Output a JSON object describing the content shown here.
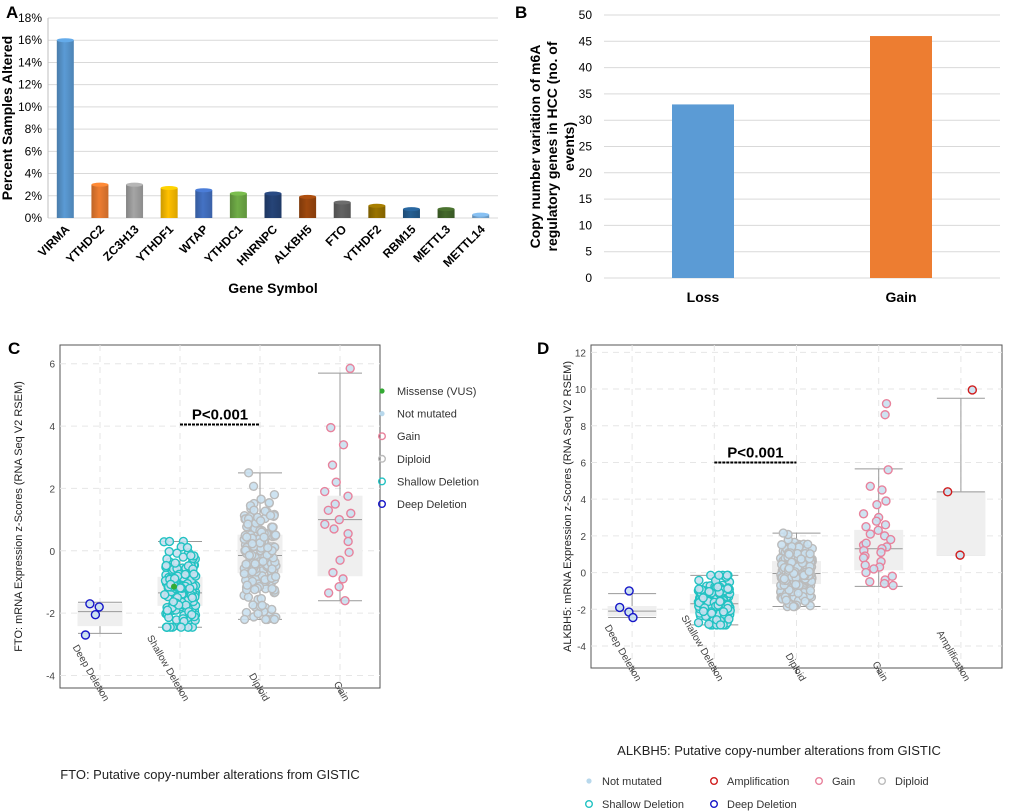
{
  "chart_data": [
    {
      "panel": "A",
      "type": "bar",
      "title": "",
      "xlabel": "Gene Symbol",
      "ylabel": "Percent Samples Altered",
      "categories": [
        "VIRMA",
        "YTHDC2",
        "ZC3H13",
        "YTHDF1",
        "WTAP",
        "YTHDC1",
        "HNRNPC",
        "ALKBH5",
        "FTO",
        "YTHDF2",
        "RBM15",
        "METTL3",
        "METTL14"
      ],
      "values": [
        16,
        3,
        3,
        2.7,
        2.5,
        2.2,
        2.2,
        1.9,
        1.4,
        1.1,
        0.8,
        0.8,
        0.3
      ],
      "colors": [
        "#5b9bd5",
        "#ed7d31",
        "#a5a5a5",
        "#ffc000",
        "#4472c4",
        "#70ad47",
        "#264478",
        "#9e480e",
        "#636363",
        "#997300",
        "#255e91",
        "#43682b",
        "#7cafdd"
      ],
      "ylim": [
        0,
        18
      ],
      "yticks": [
        0,
        2,
        4,
        6,
        8,
        10,
        12,
        14,
        16,
        18
      ],
      "ytick_labels": [
        "0%",
        "2%",
        "4%",
        "6%",
        "8%",
        "10%",
        "12%",
        "14%",
        "16%",
        "18%"
      ],
      "grid": true
    },
    {
      "panel": "B",
      "type": "bar",
      "title": "",
      "xlabel": "",
      "ylabel": "Copy number variation of m6A regulatory genes in HCC (no. of events)",
      "ylabel_lines": [
        "Copy number variation of m6A",
        "regulatory genes in HCC (no. of",
        "events)"
      ],
      "categories": [
        "Loss",
        "Gain"
      ],
      "values": [
        33,
        46
      ],
      "colors": [
        "#5b9bd5",
        "#ed7d31"
      ],
      "ylim": [
        0,
        50
      ],
      "yticks": [
        0,
        5,
        10,
        15,
        20,
        25,
        30,
        35,
        40,
        45,
        50
      ],
      "grid": true
    },
    {
      "panel": "C",
      "type": "scatter",
      "xlabel": "FTO: Putative copy-number alterations from GISTIC",
      "ylabel": "FTO: mRNA Expression z-Scores (RNA Seq V2 RSEM)",
      "categories": [
        "Deep Deletion",
        "Shallow Deletion",
        "Diploid",
        "Gain"
      ],
      "ylim": [
        -4.4,
        6.6
      ],
      "yticks": [
        -4,
        -2,
        0,
        2,
        4,
        6
      ],
      "annotation": {
        "text": "P<0.001",
        "from": "Shallow Deletion",
        "to": "Diploid",
        "y": 4.05
      },
      "legend": [
        {
          "label": "Missense (VUS)",
          "color": "#33aa33",
          "style": "dot"
        },
        {
          "label": "Not mutated",
          "color": "#b8d8ec",
          "style": "dot"
        },
        {
          "label": "Gain",
          "color": "#e8829c",
          "style": "ring"
        },
        {
          "label": "Diploid",
          "color": "#bbbbbb",
          "style": "ring"
        },
        {
          "label": "Shallow Deletion",
          "color": "#22c2c2",
          "style": "ring"
        },
        {
          "label": "Deep Deletion",
          "color": "#1616c8",
          "style": "ring"
        }
      ],
      "boxes": [
        {
          "category": "Deep Deletion",
          "min": -2.65,
          "q1": -2.4,
          "median": -1.95,
          "q3": -1.7,
          "max": -1.65,
          "color": "#1616c8",
          "n": 4,
          "points": [
            -1.7,
            -1.8,
            -2.05,
            -2.7
          ]
        },
        {
          "category": "Shallow Deletion",
          "min": -2.45,
          "q1": -1.75,
          "median": -1.35,
          "q3": -0.85,
          "max": 0.3,
          "color": "#22c2c2",
          "n": 160
        },
        {
          "category": "Diploid",
          "min": -2.2,
          "q1": -0.7,
          "median": -0.15,
          "q3": 0.5,
          "max": 2.5,
          "color": "#bbbbbb",
          "n": 200
        },
        {
          "category": "Gain",
          "min": -1.6,
          "q1": -0.8,
          "median": 1.0,
          "q3": 1.75,
          "max": 5.7,
          "color": "#e8829c",
          "n": 22,
          "points": [
            5.85,
            3.95,
            3.4,
            2.75,
            2.2,
            1.9,
            1.75,
            1.5,
            1.3,
            1.2,
            1.0,
            0.85,
            0.7,
            0.55,
            0.3,
            -0.05,
            -0.3,
            -0.7,
            -0.9,
            -1.15,
            -1.35,
            -1.6
          ]
        }
      ],
      "missense_point": {
        "category": "Shallow Deletion",
        "y": -1.15
      }
    },
    {
      "panel": "D",
      "type": "scatter",
      "xlabel": "ALKBH5: Putative copy-number alterations from GISTIC",
      "ylabel": "ALKBH5: mRNA Expression z-Scores (RNA Seq V2 RSEM)",
      "categories": [
        "Deep Deletion",
        "Shallow Deletion",
        "Diploid",
        "Gain",
        "Amplification"
      ],
      "ylim": [
        -5.2,
        12.4
      ],
      "yticks": [
        -4,
        -2,
        0,
        2,
        4,
        6,
        8,
        10,
        12
      ],
      "annotation": {
        "text": "P<0.001",
        "from": "Shallow Deletion",
        "to": "Diploid",
        "y": 6.0
      },
      "legend": [
        {
          "label": "Not mutated",
          "color": "#b8d8ec",
          "style": "dot"
        },
        {
          "label": "Amplification",
          "color": "#d01c1c",
          "style": "ring"
        },
        {
          "label": "Gain",
          "color": "#e8829c",
          "style": "ring"
        },
        {
          "label": "Diploid",
          "color": "#bbbbbb",
          "style": "ring"
        },
        {
          "label": "Shallow Deletion",
          "color": "#22c2c2",
          "style": "ring"
        },
        {
          "label": "Deep Deletion",
          "color": "#1616c8",
          "style": "ring"
        }
      ],
      "boxes": [
        {
          "category": "Deep Deletion",
          "min": -2.45,
          "q1": -2.35,
          "median": -2.1,
          "q3": -1.85,
          "max": -1.15,
          "color": "#1616c8",
          "n": 4,
          "points": [
            -1.0,
            -1.9,
            -2.15,
            -2.45
          ]
        },
        {
          "category": "Shallow Deletion",
          "min": -2.85,
          "q1": -2.2,
          "median": -1.7,
          "q3": -1.2,
          "max": -0.15,
          "color": "#22c2c2",
          "n": 150
        },
        {
          "category": "Diploid",
          "min": -1.85,
          "q1": -0.6,
          "median": -0.05,
          "q3": 0.6,
          "max": 2.15,
          "color": "#bbbbbb",
          "n": 220
        },
        {
          "category": "Gain",
          "min": -0.75,
          "q1": 0.15,
          "median": 1.3,
          "q3": 2.3,
          "max": 5.65,
          "color": "#e8829c",
          "n": 34,
          "points": [
            9.2,
            8.6,
            5.6,
            4.7,
            4.5,
            3.9,
            3.7,
            3.2,
            3.0,
            2.8,
            2.5,
            2.3,
            2.1,
            2.0,
            1.8,
            1.5,
            1.4,
            1.3,
            1.2,
            1.1,
            0.9,
            0.8,
            0.6,
            0.4,
            0.3,
            0.2,
            0.0,
            -0.2,
            -0.4,
            -0.5,
            -0.6,
            -0.7,
            1.6,
            2.6
          ]
        },
        {
          "category": "Amplification",
          "min": 0.95,
          "q1": 0.95,
          "median": 4.4,
          "q3": 4.4,
          "max": 9.5,
          "color": "#d01c1c",
          "n": 3,
          "points": [
            9.95,
            4.4,
            0.95
          ]
        }
      ]
    }
  ]
}
